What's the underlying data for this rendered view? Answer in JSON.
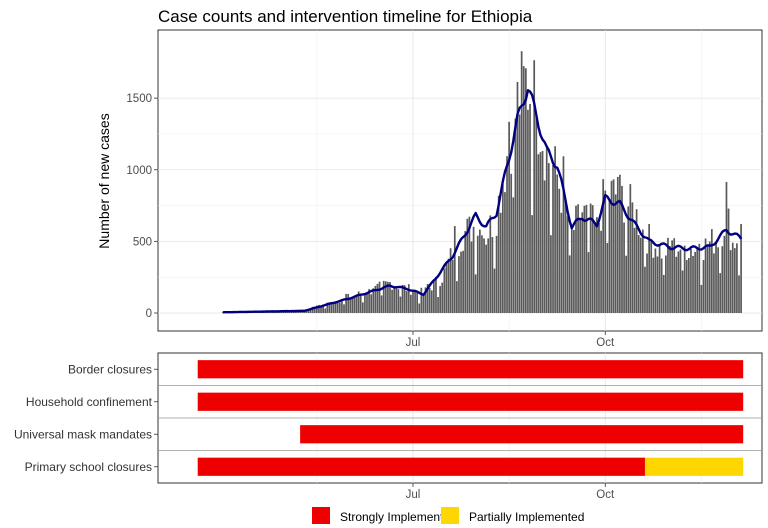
{
  "chart_data": [
    {
      "type": "bar",
      "title": "Case counts and intervention timeline for Ethiopia",
      "xlabel": "",
      "ylabel": "Number of new cases",
      "x_tick_labels": [
        "Jul",
        "Oct"
      ],
      "y_tick_labels": [
        "0",
        "500",
        "1000",
        "1500"
      ],
      "ylim": [
        0,
        1850
      ],
      "grid": true,
      "series": [
        {
          "kind": "bar",
          "color": "#595959"
        },
        {
          "kind": "line",
          "color": "#000080"
        }
      ],
      "daily_keypoints": [
        [
          "2020-04-01",
          5
        ],
        [
          "2020-04-15",
          8
        ],
        [
          "2020-05-01",
          12
        ],
        [
          "2020-05-10",
          20
        ],
        [
          "2020-05-20",
          60
        ],
        [
          "2020-05-31",
          110
        ],
        [
          "2020-06-10",
          150
        ],
        [
          "2020-06-20",
          210
        ],
        [
          "2020-06-28",
          170
        ],
        [
          "2020-07-06",
          140
        ],
        [
          "2020-07-15",
          250
        ],
        [
          "2020-07-20",
          420
        ],
        [
          "2020-07-25",
          550
        ],
        [
          "2020-07-31",
          610
        ],
        [
          "2020-08-05",
          540
        ],
        [
          "2020-08-10",
          690
        ],
        [
          "2020-08-15",
          1100
        ],
        [
          "2020-08-20",
          1450
        ],
        [
          "2020-08-24",
          1600
        ],
        [
          "2020-08-28",
          1500
        ],
        [
          "2020-09-03",
          1100
        ],
        [
          "2020-09-08",
          950
        ],
        [
          "2020-09-15",
          560
        ],
        [
          "2020-09-20",
          700
        ],
        [
          "2020-09-27",
          580
        ],
        [
          "2020-10-01",
          830
        ],
        [
          "2020-10-08",
          820
        ],
        [
          "2020-10-15",
          700
        ],
        [
          "2020-10-20",
          540
        ],
        [
          "2020-10-28",
          430
        ],
        [
          "2020-11-05",
          460
        ],
        [
          "2020-11-15",
          440
        ],
        [
          "2020-11-25",
          530
        ],
        [
          "2020-11-28",
          700
        ],
        [
          "2020-12-01",
          480
        ],
        [
          "2020-12-05",
          560
        ]
      ],
      "rolling_average_keypoints": [
        [
          "2020-04-01",
          5
        ],
        [
          "2020-05-10",
          15
        ],
        [
          "2020-05-31",
          100
        ],
        [
          "2020-06-20",
          190
        ],
        [
          "2020-06-28",
          170
        ],
        [
          "2020-07-06",
          130
        ],
        [
          "2020-07-20",
          400
        ],
        [
          "2020-07-31",
          680
        ],
        [
          "2020-08-05",
          600
        ],
        [
          "2020-08-10",
          700
        ],
        [
          "2020-08-20",
          1350
        ],
        [
          "2020-08-25",
          1580
        ],
        [
          "2020-09-03",
          1130
        ],
        [
          "2020-09-08",
          1030
        ],
        [
          "2020-09-15",
          600
        ],
        [
          "2020-09-20",
          670
        ],
        [
          "2020-09-27",
          620
        ],
        [
          "2020-10-01",
          800
        ],
        [
          "2020-10-08",
          760
        ],
        [
          "2020-10-15",
          620
        ],
        [
          "2020-10-22",
          500
        ],
        [
          "2020-11-01",
          460
        ],
        [
          "2020-11-10",
          450
        ],
        [
          "2020-11-20",
          460
        ],
        [
          "2020-11-28",
          580
        ],
        [
          "2020-12-05",
          520
        ]
      ]
    },
    {
      "type": "timeline",
      "categories": [
        "Border closures",
        "Household confinement",
        "Universal mask mandates",
        "Primary school closures"
      ],
      "x_tick_labels": [
        "Jul",
        "Oct"
      ],
      "legend": [
        {
          "label": "Strongly Implemented",
          "color": "#EE0000"
        },
        {
          "label": "Partially Implemented",
          "color": "#FFD700"
        }
      ],
      "legend_position": "bottom",
      "intervals": [
        {
          "category": "Border closures",
          "start": "2020-03-20",
          "end": "2020-12-06",
          "level": "Strongly Implemented"
        },
        {
          "category": "Household confinement",
          "start": "2020-03-20",
          "end": "2020-12-06",
          "level": "Strongly Implemented"
        },
        {
          "category": "Universal mask mandates",
          "start": "2020-05-08",
          "end": "2020-12-06",
          "level": "Strongly Implemented"
        },
        {
          "category": "Primary school closures",
          "start": "2020-03-20",
          "end": "2020-10-20",
          "level": "Strongly Implemented"
        },
        {
          "category": "Primary school closures",
          "start": "2020-10-20",
          "end": "2020-12-06",
          "level": "Partially Implemented"
        }
      ]
    }
  ]
}
